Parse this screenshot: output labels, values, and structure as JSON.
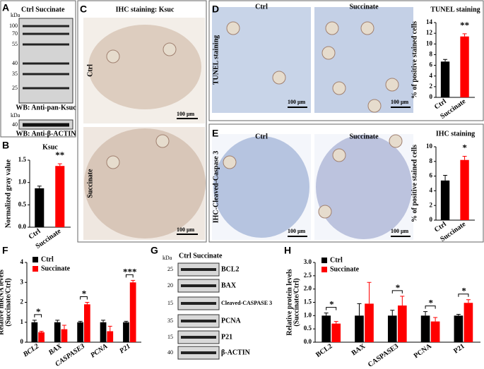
{
  "panels": {
    "letters": [
      "A",
      "B",
      "C",
      "D",
      "E",
      "F",
      "G",
      "H"
    ],
    "a": {
      "lanes": "Ctrl Succinate",
      "kda": "kDa",
      "markers": [
        "100",
        "70",
        "55",
        "40",
        "35",
        "25"
      ],
      "wb1": "WB: Anti-pan-Ksuc",
      "kda2": "kDa",
      "marker2": "40",
      "wb2": "WB: Anti-β-ACTIN"
    },
    "c": {
      "title": "IHC staining: Ksuc",
      "rows": [
        "Ctrl",
        "Succinate"
      ],
      "scale": "100 μm"
    },
    "d": {
      "cols": [
        "Ctrl",
        "Succinate"
      ],
      "side": "TUNEL staining",
      "scale": "100 μm"
    },
    "e": {
      "cols": [
        "Ctrl",
        "Succinate"
      ],
      "side": "IHC-Cleaved-Caspase 3",
      "scale": "100 μm"
    },
    "g": {
      "kda": "kDa",
      "lanes": "Ctrl Succinate",
      "rows": [
        {
          "marker": "25",
          "label": "BCL2"
        },
        {
          "marker": "20",
          "label": "BAX"
        },
        {
          "marker": "15",
          "label": "Cleaved-CASPASE 3"
        },
        {
          "marker": "35",
          "label": "PCNA"
        },
        {
          "marker": "15",
          "label": "P21"
        },
        {
          "marker": "40",
          "label": "β-ACTIN"
        }
      ]
    }
  },
  "chart_data": [
    {
      "type": "bar",
      "title": "Ksuc",
      "ylabel": "Normalized gray value",
      "categories": [
        "Ctrl",
        "Succinate"
      ],
      "values": [
        0.87,
        1.37
      ],
      "errors": [
        0.05,
        0.05
      ],
      "colors": [
        "#000000",
        "#ff0000"
      ],
      "annotations": [
        null,
        "**"
      ],
      "ylim": [
        0,
        1.5
      ],
      "yticks": [
        {
          "value": 0,
          "label": "0.0"
        },
        0.5,
        {
          "value": 1,
          "label": "1.0"
        },
        1.5
      ]
    },
    {
      "type": "bar",
      "title": "TUNEL staining",
      "ylabel": "% of positive stained cells",
      "categories": [
        "Ctrl",
        "Succinate"
      ],
      "values": [
        6.7,
        11.4
      ],
      "errors": [
        0.4,
        0.5
      ],
      "colors": [
        "#000000",
        "#ff0000"
      ],
      "annotations": [
        null,
        "**"
      ],
      "ylim": [
        0,
        14
      ],
      "yticks": [
        0,
        2,
        4,
        6,
        8,
        10,
        12,
        14
      ]
    },
    {
      "type": "bar",
      "title": "IHC  staining",
      "ylabel": "% of positive stained cells",
      "categories": [
        "Ctrl",
        "Succinate"
      ],
      "values": [
        5.4,
        8.2
      ],
      "errors": [
        0.7,
        0.5
      ],
      "colors": [
        "#000000",
        "#ff0000"
      ],
      "annotations": [
        null,
        "*"
      ],
      "ylim": [
        0,
        10
      ],
      "yticks": [
        0,
        2,
        4,
        6,
        8,
        10
      ]
    },
    {
      "type": "bar",
      "ylabel": [
        "Relative mRNA levels",
        "(Succinate/Ctrl)"
      ],
      "categories": [
        "BCL2",
        "BAX",
        "CASPASE3",
        "PCNA",
        "P21"
      ],
      "series": [
        {
          "name": "Ctrl",
          "color": "#000000",
          "values": [
            1,
            1,
            1,
            1,
            1
          ],
          "errors": [
            0.1,
            0.1,
            0.05,
            0.1,
            0.05
          ]
        },
        {
          "name": "Succinate",
          "color": "#ff0000",
          "values": [
            0.5,
            0.65,
            1.9,
            0.55,
            3.0
          ],
          "errors": [
            0.05,
            0.2,
            0.1,
            0.25,
            0.1
          ]
        }
      ],
      "annotations": [
        "*",
        null,
        "*",
        null,
        "***"
      ],
      "ylim": [
        0,
        4
      ],
      "yticks": [
        0,
        1,
        2,
        3,
        4
      ]
    },
    {
      "type": "bar",
      "ylabel": [
        "Relative protein levels",
        "(Succinate/Ctrl)"
      ],
      "categories": [
        "BCL2",
        "BAX",
        "CASPASE3",
        "PCNA",
        "P21"
      ],
      "series": [
        {
          "name": "Ctrl",
          "color": "#000000",
          "values": [
            1,
            1,
            1,
            1,
            1
          ],
          "errors": [
            0.1,
            0.45,
            0.2,
            0.15,
            0.05
          ]
        },
        {
          "name": "Succinate",
          "color": "#ff0000",
          "values": [
            0.7,
            1.45,
            1.38,
            0.78,
            1.48
          ],
          "errors": [
            0.08,
            0.8,
            0.35,
            0.15,
            0.12
          ]
        }
      ],
      "annotations": [
        "*",
        null,
        "*",
        "*",
        "*"
      ],
      "ylim": [
        0,
        3
      ],
      "yticks": [
        {
          "value": 0,
          "label": "0.0"
        },
        0.5,
        {
          "value": 1,
          "label": "1.0"
        },
        1.5,
        {
          "value": 2,
          "label": "2.0"
        },
        2.5,
        {
          "value": 3,
          "label": "3.0"
        }
      ]
    }
  ]
}
